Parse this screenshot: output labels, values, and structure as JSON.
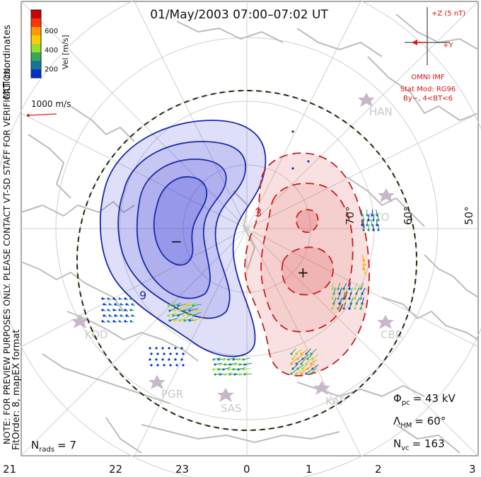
{
  "title": "01/May/2003  07:00–07:02  UT",
  "velocity_scale": {
    "label": "Vel [m/s]",
    "ticks": [
      "600",
      "400",
      "200"
    ],
    "colors": [
      "#cc0000",
      "#ff3300",
      "#ff9900",
      "#ffcc00",
      "#99dd33",
      "#33aa55",
      "#117799",
      "#0033cc"
    ],
    "coords_label": "MLT coordinates",
    "ref_vector_label": "1000 m/s",
    "ref_color": "#d42020"
  },
  "imf": {
    "bz_label": "+Z (5 nT)",
    "by_label": "+Y",
    "source": "OMNI IMF",
    "stat_mod": "Stat Mod: RG96",
    "bins": "By−, 4<BT<6",
    "color": "#dd1111"
  },
  "side_note": {
    "line1": "NOTE: FOR PREVIEW PURPOSES ONLY. PLEASE CONTACT VT-SD STAFF FOR VERIFICATION.",
    "line2": "FitOrder: 8, mapEX format"
  },
  "latitude_labels": [
    "70°",
    "60°",
    "50°"
  ],
  "mlt_axis": [
    "21",
    "22",
    "23",
    "0",
    "1",
    "2",
    "3"
  ],
  "stations": [
    "HAN",
    "STO",
    "KOD",
    "CBR",
    "PGR",
    "SAS",
    "KAP"
  ],
  "contour_labels": {
    "negative": "9",
    "positive": "3"
  },
  "cell_markers": {
    "min": "−",
    "max": "+"
  },
  "stats": {
    "nrads_label": "N",
    "nrads_sub": "rads",
    "nrads_value": "= 7",
    "phi_label": "Φ",
    "phi_sub": "pc",
    "phi_value": "= 43 kV",
    "lambda_label": "Λ",
    "lambda_sub": "HM",
    "lambda_value": "= 60°",
    "nvc_label": "N",
    "nvc_sub": "vc",
    "nvc_value": "= 163"
  },
  "colors": {
    "negative_fill": "#3b3bd9",
    "negative_line": "#1a2aa8",
    "positive_fill": "#e05a5a",
    "positive_line": "#c81e1e",
    "coast": "#bdbdbd",
    "grid": "#c9c9c9"
  }
}
